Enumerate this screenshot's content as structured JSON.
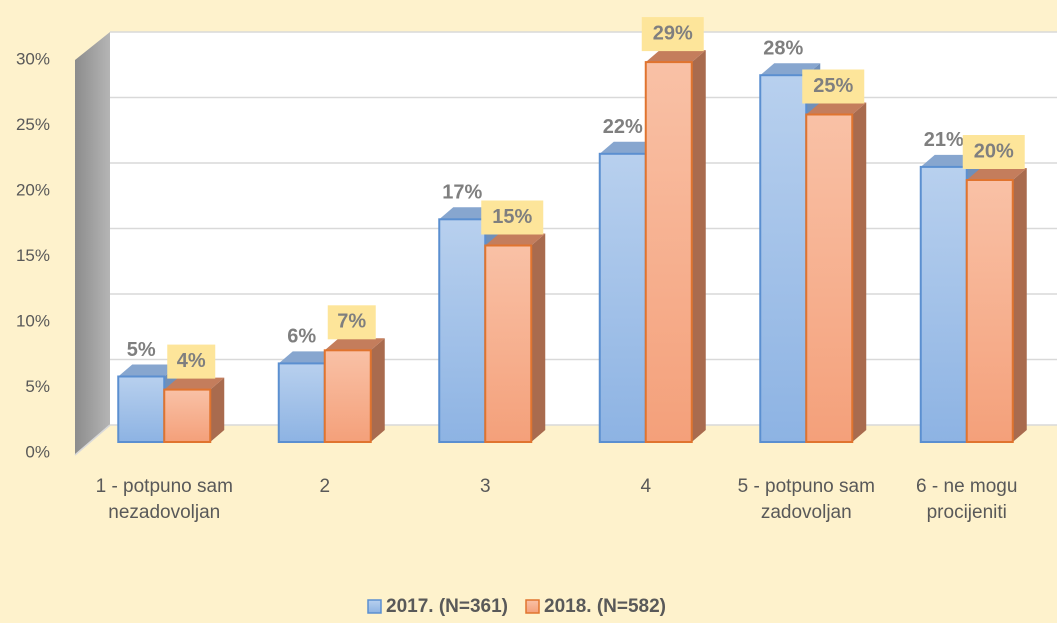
{
  "chart_data": {
    "type": "bar3d",
    "categories": [
      "1 - potpuno sam nezadovoljan",
      "2",
      "3",
      "4",
      "5 - potpuno sam zadovoljan",
      "6 - ne mogu procijeniti"
    ],
    "series": [
      {
        "name": "2017. (N=361)",
        "color": "#9dbfe8",
        "values": [
          5,
          6,
          17,
          22,
          28,
          21
        ],
        "value_labels": [
          "5%",
          "6%",
          "17%",
          "22%",
          "28%",
          "21%"
        ]
      },
      {
        "name": "2018. (N=582)",
        "color": "#f7ae8c",
        "values": [
          4,
          7,
          15,
          29,
          25,
          20
        ],
        "value_labels": [
          "4%",
          "7%",
          "15%",
          "29%",
          "25%",
          "20%"
        ]
      }
    ],
    "ylim": [
      0,
      30
    ],
    "yticks": [
      {
        "value": 0,
        "label": "0%"
      },
      {
        "value": 5,
        "label": "5%"
      },
      {
        "value": 10,
        "label": "10%"
      },
      {
        "value": 15,
        "label": "15%"
      },
      {
        "value": 20,
        "label": "20%"
      },
      {
        "value": 25,
        "label": "25%"
      },
      {
        "value": 30,
        "label": "30%"
      }
    ],
    "grid": true,
    "legend": "bottom"
  }
}
